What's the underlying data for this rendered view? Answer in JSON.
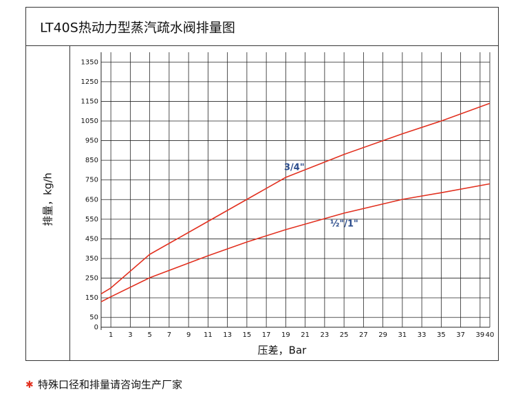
{
  "chart_data": {
    "type": "line",
    "title": "LT40S热动力型蒸汽疏水阀排量图",
    "x_label": "压差，Bar",
    "y_label": "排量，kg/h",
    "x": [
      0,
      1,
      5,
      11,
      15,
      19,
      25,
      31,
      35,
      40
    ],
    "series": [
      {
        "name": "3/4\"",
        "color": "#e2301f",
        "values": [
          170,
          200,
          371,
          539,
          651,
          763,
          880,
          985,
          1050,
          1140
        ]
      },
      {
        "name": "½\"/1\"",
        "color": "#e2301f",
        "values": [
          130,
          155,
          252,
          364,
          434,
          497,
          581,
          651,
          685,
          730
        ]
      }
    ],
    "xlim": [
      0,
      40
    ],
    "xticks": [
      1,
      3,
      5,
      7,
      9,
      11,
      13,
      15,
      17,
      19,
      21,
      23,
      25,
      27,
      29,
      31,
      33,
      35,
      37,
      39,
      40
    ],
    "ylim": [
      0,
      1400
    ],
    "yticks": [
      0,
      50,
      150,
      250,
      350,
      450,
      550,
      650,
      750,
      850,
      950,
      1050,
      1150,
      1250,
      1350
    ],
    "grid": true,
    "note_marker": "✱",
    "note": "特殊口径和排量请咨询生产厂家"
  }
}
